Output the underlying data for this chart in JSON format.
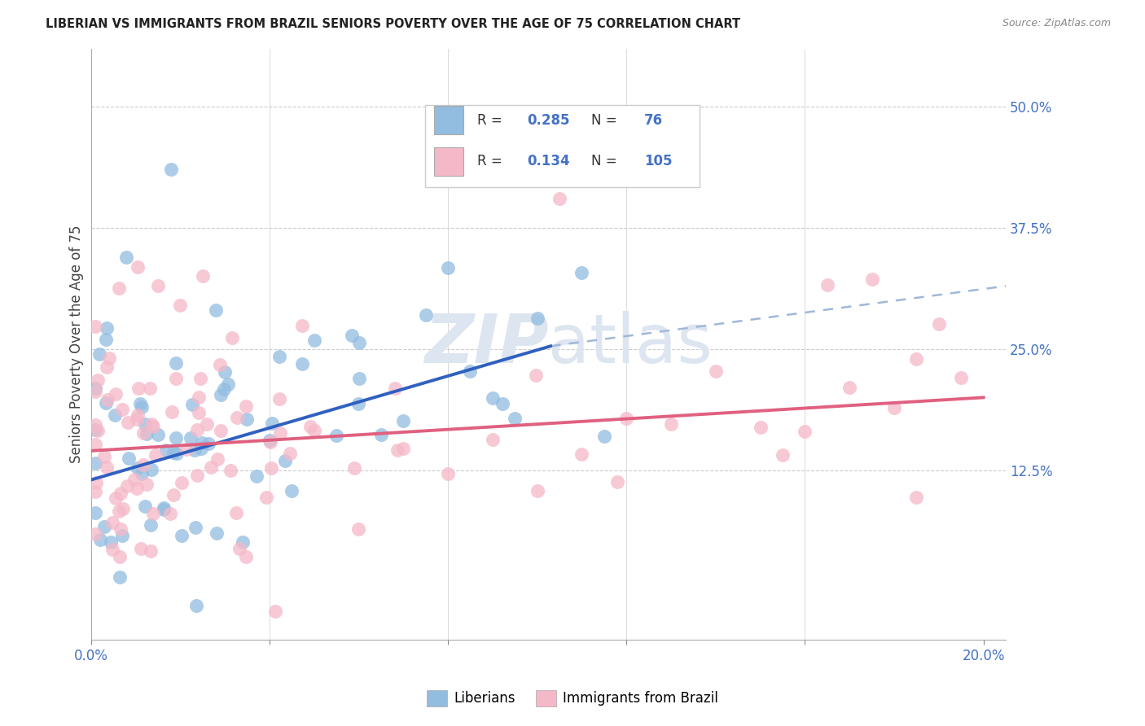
{
  "title": "LIBERIAN VS IMMIGRANTS FROM BRAZIL SENIORS POVERTY OVER THE AGE OF 75 CORRELATION CHART",
  "source": "Source: ZipAtlas.com",
  "ylabel": "Seniors Poverty Over the Age of 75",
  "xlim": [
    0.0,
    0.205
  ],
  "ylim": [
    -0.05,
    0.56
  ],
  "xtick_positions": [
    0.0,
    0.04,
    0.08,
    0.12,
    0.16,
    0.2
  ],
  "xticklabels": [
    "0.0%",
    "",
    "",
    "",
    "",
    "20.0%"
  ],
  "ytick_positions": [
    0.125,
    0.25,
    0.375,
    0.5
  ],
  "yticklabels": [
    "12.5%",
    "25.0%",
    "37.5%",
    "50.0%"
  ],
  "legend_r_blue": "0.285",
  "legend_n_blue": "76",
  "legend_r_pink": "0.134",
  "legend_n_pink": "105",
  "blue_scatter_color": "#92bce0",
  "pink_scatter_color": "#f5b8c8",
  "blue_line_color": "#3060c0",
  "pink_line_color": "#e06080",
  "dash_line_color": "#a0b8d8",
  "grid_color": "#cccccc",
  "background_color": "#ffffff",
  "watermark_zip": "ZIP",
  "watermark_atlas": "atlas",
  "tick_label_color": "#4472c4",
  "blue_line_x0": 0.0,
  "blue_line_y0": 0.115,
  "blue_line_x1": 0.103,
  "blue_line_y1": 0.253,
  "pink_line_x0": 0.0,
  "pink_line_y0": 0.145,
  "pink_line_x1": 0.2,
  "pink_line_y1": 0.2,
  "dash_line_x0": 0.103,
  "dash_line_y0": 0.253,
  "dash_line_x1": 0.205,
  "dash_line_y1": 0.315
}
